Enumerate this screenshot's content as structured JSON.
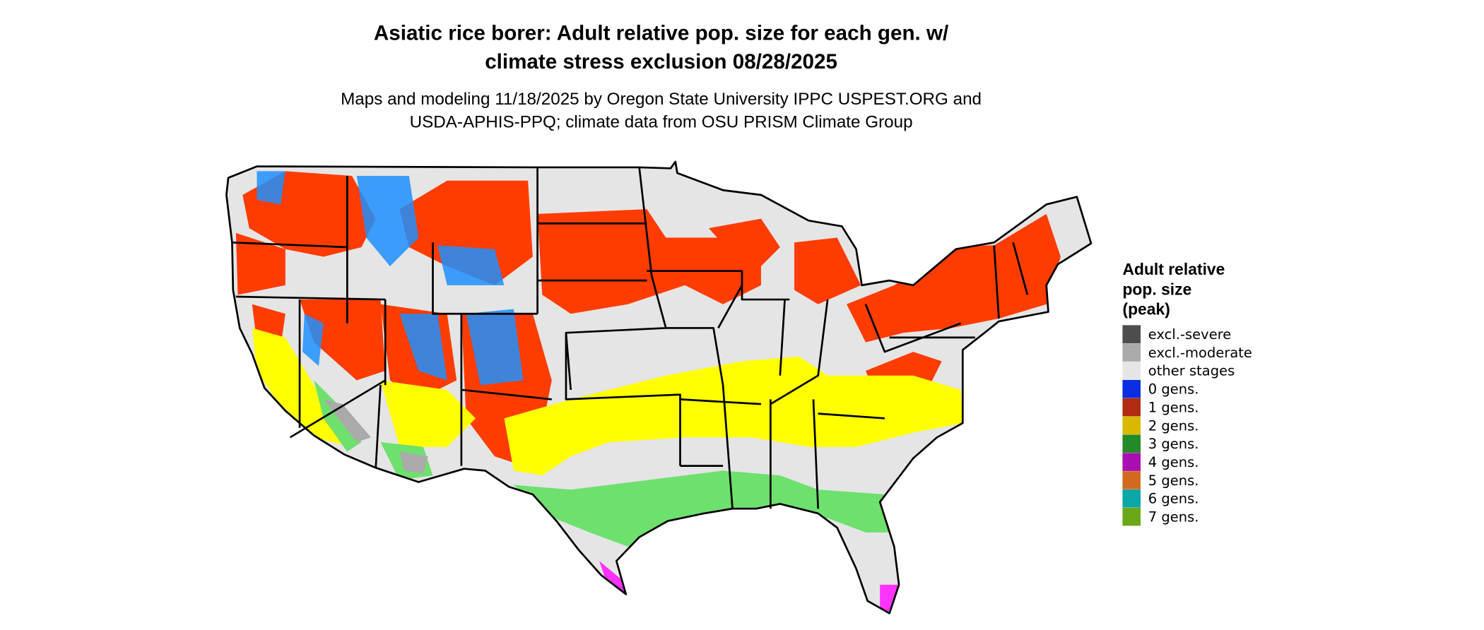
{
  "title_lines": [
    "Asiatic rice borer: Adult relative pop. size for each gen. w/",
    "climate stress exclusion 08/28/2025"
  ],
  "subtitle_lines": [
    "Maps and modeling 11/18/2025 by Oregon State University IPPC USPEST.ORG and",
    "USDA-APHIS-PPQ; climate data from OSU PRISM Climate Group"
  ],
  "legend": {
    "title_lines": [
      "Adult relative",
      "pop. size",
      "(peak)"
    ],
    "items": [
      {
        "label": "excl.-severe",
        "color": "#4d4d4d"
      },
      {
        "label": "excl.-moderate",
        "color": "#aaaaaa"
      },
      {
        "label": "other stages",
        "color": "#e5e5e5"
      },
      {
        "label": "0 gens.",
        "color": "#0a2ee0"
      },
      {
        "label": "1 gens.",
        "color": "#b22a12"
      },
      {
        "label": "2 gens.",
        "color": "#d9b800"
      },
      {
        "label": "3 gens.",
        "color": "#238a2a"
      },
      {
        "label": "4 gens.",
        "color": "#a80fb0"
      },
      {
        "label": "5 gens.",
        "color": "#d2691e"
      },
      {
        "label": "6 gens.",
        "color": "#0aa7a7"
      },
      {
        "label": "7 gens.",
        "color": "#6aa81a"
      }
    ]
  }
}
